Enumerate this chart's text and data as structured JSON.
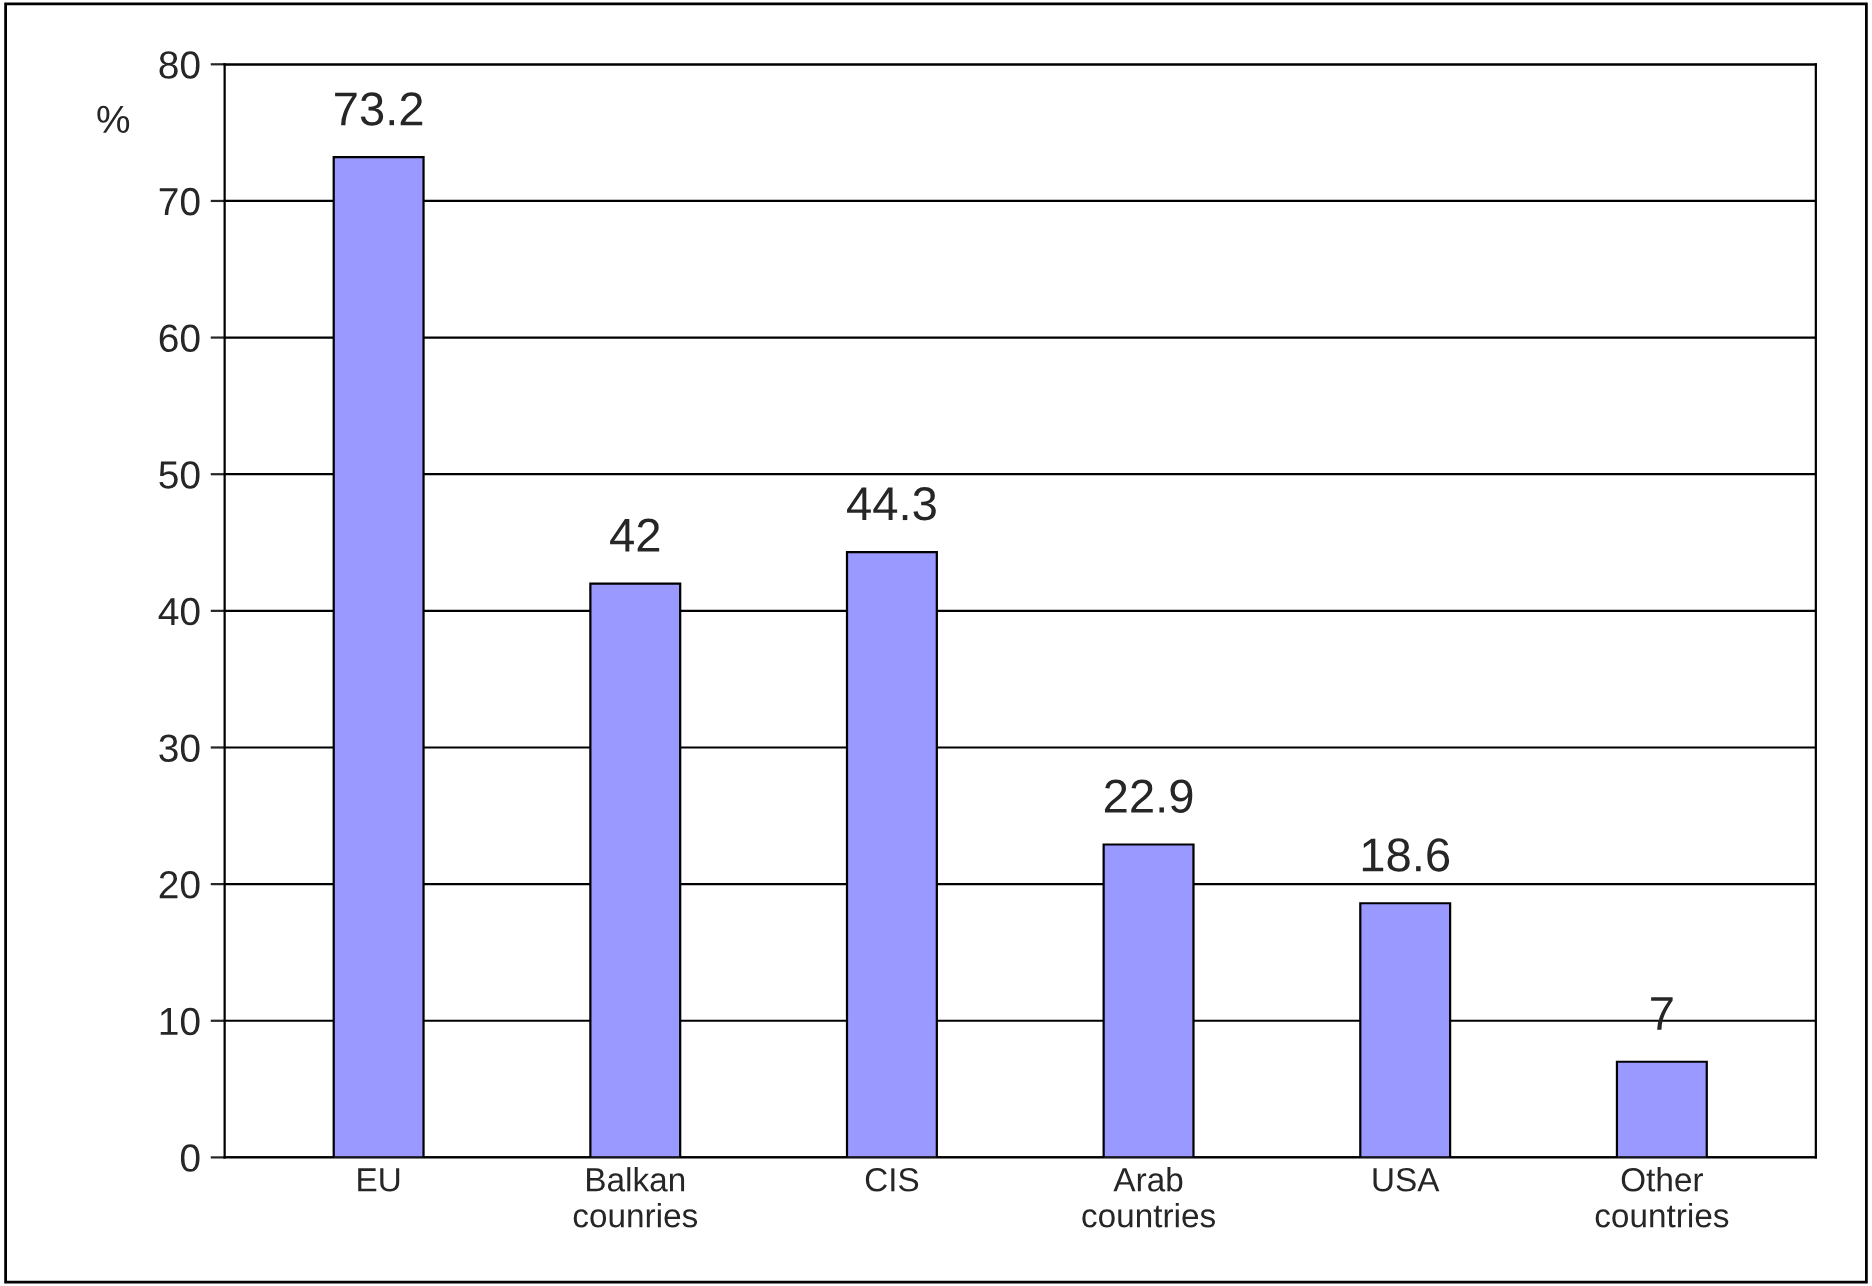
{
  "chart_data": {
    "type": "bar",
    "ylabel": "%",
    "categories": [
      "EU",
      "Balkan\ncounries",
      "CIS",
      "Arab\ncountries",
      "USA",
      "Other\ncountries"
    ],
    "values": [
      73.2,
      42,
      44.3,
      22.9,
      18.6,
      7
    ],
    "color": "#9999ff",
    "ylim": [
      0,
      80
    ],
    "yticks": [
      0,
      10,
      20,
      30,
      40,
      50,
      60,
      70,
      80
    ],
    "grid": "y",
    "data_labels": true
  }
}
